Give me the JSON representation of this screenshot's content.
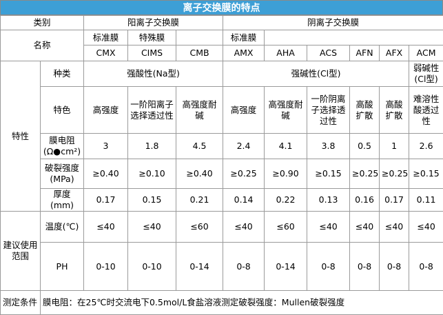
{
  "header": {
    "title": "离子交换膜的特点"
  },
  "table": {
    "category": {
      "label": "类别",
      "cation": "阳离子交换膜",
      "anion": "阴离子交换膜"
    },
    "name": {
      "label": "名称",
      "cation_standard": "标准膜",
      "cation_special": "特殊膜",
      "anion_standard": "标准膜",
      "codes": [
        "CMX",
        "CIMS",
        "CMB",
        "AMX",
        "AHA",
        "ACS",
        "AFN",
        "AFX",
        "ACM"
      ]
    },
    "characteristics": {
      "label": "特性",
      "type": {
        "label": "种类",
        "groups": [
          "强酸性(Na型)",
          "强碱性(Cl型)",
          "弱碱性(Cl型)"
        ]
      },
      "feature": {
        "label": "特色",
        "values": [
          "高强度",
          "一阶阳离子选择透过性",
          "高强度耐碱",
          "高强度",
          "高强度耐碱",
          "一阶阴离子选择透过性",
          "高酸扩散",
          "高酸扩散",
          "难溶性酸透过性"
        ]
      },
      "resistance": {
        "label": "膜电阻\n(Ω●cm²)",
        "values": [
          3,
          1.8,
          4.5,
          2.4,
          4.1,
          3.8,
          0.5,
          1,
          2.6
        ]
      },
      "burst": {
        "label": "破裂强度\n(MPa)",
        "values": [
          "≥0.40",
          "≥0.10",
          "≥0.40",
          "≥0.25",
          "≥0.90",
          "≥0.15",
          "≥0.25",
          "≥0.25",
          "≥0.15"
        ]
      },
      "thickness": {
        "label": "厚度(mm)",
        "values": [
          0.17,
          0.15,
          0.21,
          0.14,
          0.22,
          0.13,
          0.16,
          0.17,
          0.11
        ]
      }
    },
    "usage": {
      "label": "建议使用范围",
      "temperature": {
        "label": "温度(℃)",
        "values": [
          "≤40",
          "≤40",
          "≤60",
          "≤40",
          "≤60",
          "≤40",
          "≤40",
          "≤40",
          "≤40"
        ]
      },
      "ph": {
        "label": "PH",
        "values": [
          "0-10",
          "0-10",
          "0-14",
          "0-8",
          "0-14",
          "0-8",
          "0-8",
          "0-8",
          "0-8"
        ]
      }
    },
    "footer": {
      "label": "测定条件",
      "text": "膜电阻：在25℃时交流电下0.5mol/L食盐溶液测定破裂强度：Mullen破裂强度"
    }
  }
}
